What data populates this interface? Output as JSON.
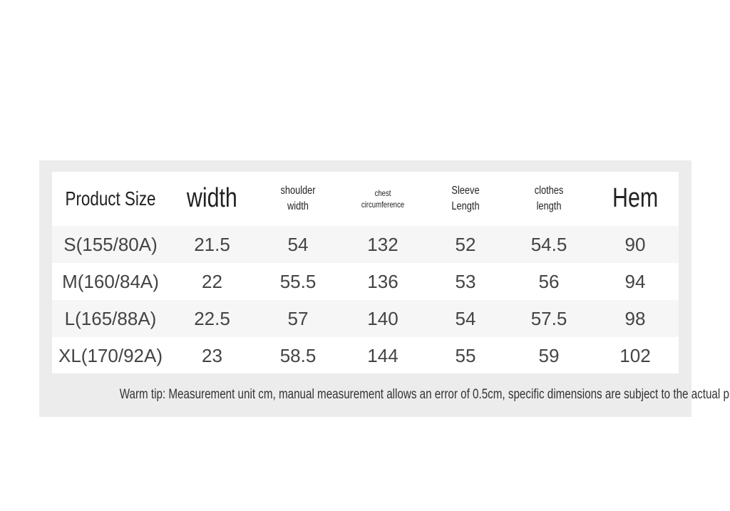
{
  "table": {
    "headers": [
      "Product Size",
      "width",
      "shoulder width",
      "chest circumference",
      "Sleeve Length",
      "clothes length",
      "Hem"
    ],
    "rows": [
      [
        "S(155/80A)",
        21.5,
        54,
        132,
        52,
        54.5,
        90
      ],
      [
        "M(160/84A)",
        22,
        55.5,
        136,
        53,
        56,
        94
      ],
      [
        "L(165/88A)",
        22.5,
        57,
        140,
        54,
        57.5,
        98
      ],
      [
        "XL(170/92A)",
        23,
        58.5,
        144,
        55,
        59,
        102
      ]
    ]
  },
  "note": "Warm tip: Measurement unit cm, manual measurement allows an error of 0.5cm, specific dimensions are subject to the actual product."
}
